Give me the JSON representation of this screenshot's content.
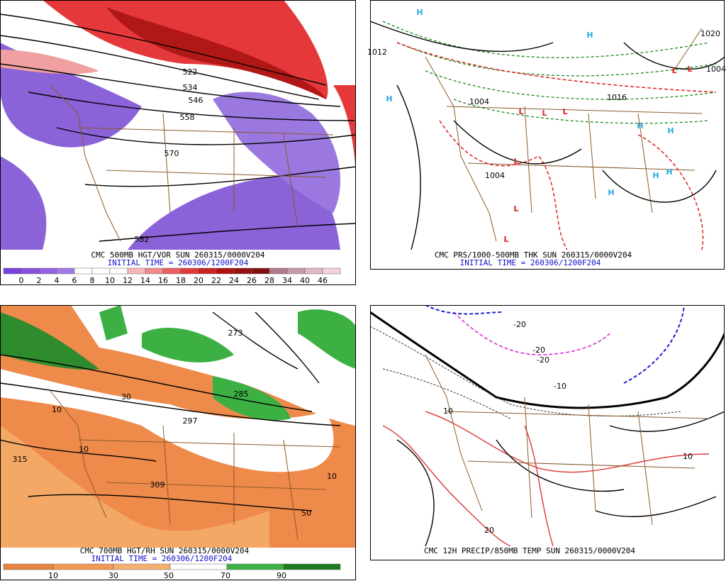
{
  "panels": [
    {
      "caption": "CMC 500MB HGT/VOR SUN 260315/0000V204",
      "initial_time": "INITIAL TIME = 260306/1200F204",
      "colorbar_labels": [
        "0",
        "2",
        "4",
        "6",
        "8",
        "10",
        "12",
        "14",
        "16",
        "18",
        "20",
        "22",
        "24",
        "26",
        "28",
        "34",
        "40",
        "46"
      ],
      "map_labels": [
        "522",
        "534",
        "546",
        "558",
        "570",
        "582"
      ]
    },
    {
      "caption": "CMC PRS/1000-500MB THK SUN 260315/0000V204",
      "initial_time": "INITIAL TIME = 260306/1200F204",
      "map_labels": [
        "H",
        "H",
        "H",
        "H",
        "H",
        "H",
        "H",
        "H",
        "L",
        "L",
        "L",
        "L",
        "L",
        "L",
        "L",
        "L",
        "1012",
        "1004",
        "1004",
        "1020",
        "1004",
        "1016"
      ]
    },
    {
      "caption": "CMC 700MB HGT/RH SUN 260315/0000V204",
      "initial_time": "INITIAL TIME = 260306/1200F204",
      "colorbar_labels": [
        "10",
        "30",
        "50",
        "70",
        "90"
      ],
      "map_labels": [
        "315",
        "309",
        "297",
        "285",
        "273",
        "10",
        "10",
        "10",
        "50",
        "30"
      ]
    },
    {
      "caption": "CMC 12H PRECIP/850MB TEMP SUN 260315/0000V204",
      "map_labels": [
        "-20",
        "-20",
        "-20",
        "-10",
        "10",
        "10",
        "20"
      ]
    }
  ]
}
